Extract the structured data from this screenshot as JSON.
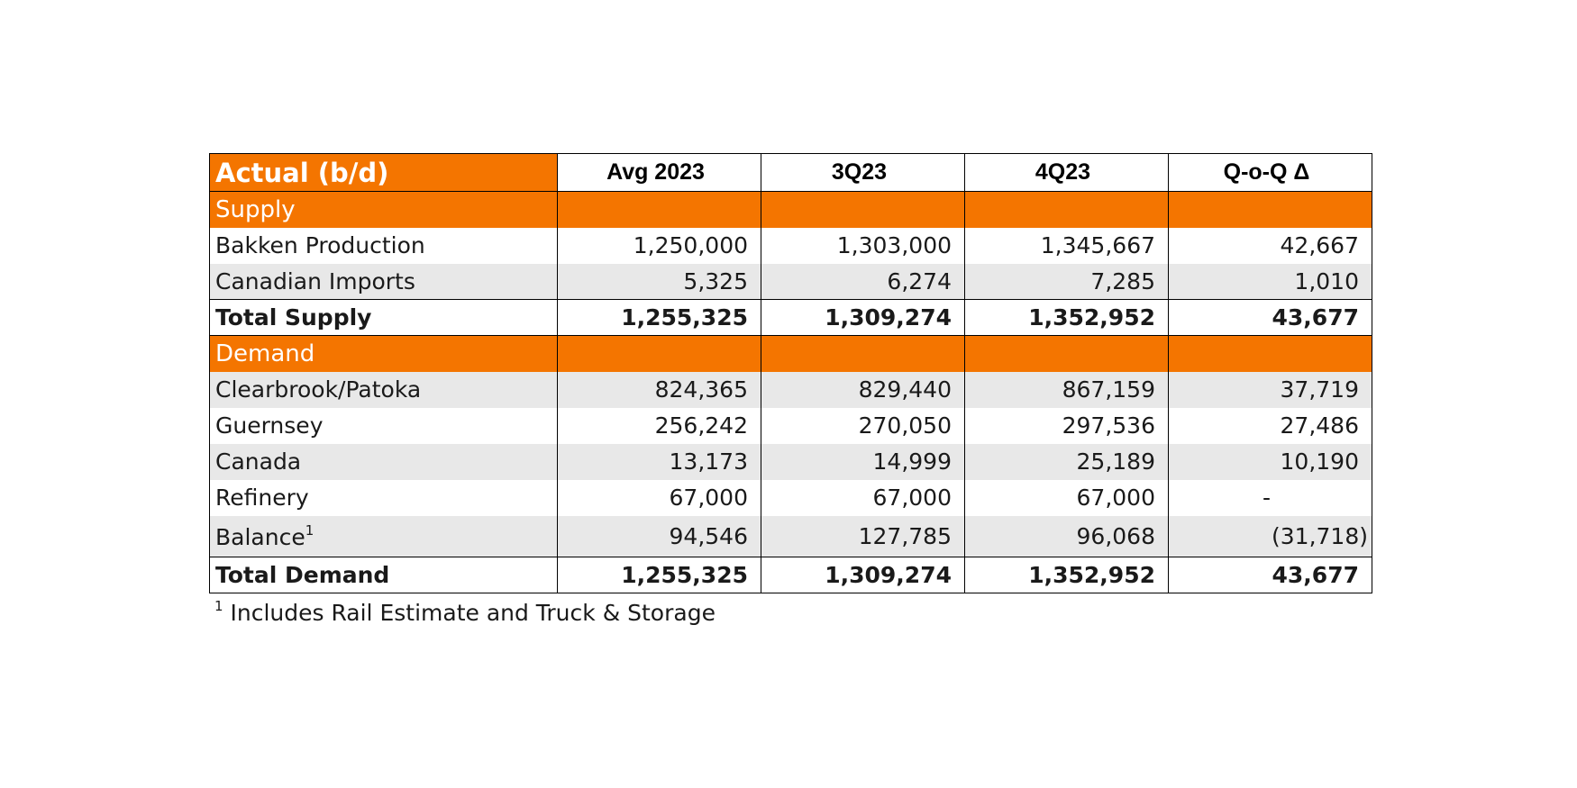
{
  "table": {
    "title": "Actual (b/d)",
    "columns": [
      "Avg 2023",
      "3Q23",
      "4Q23",
      "Q-o-Q Δ"
    ],
    "supply": {
      "label": "Supply",
      "rows": [
        {
          "label": "Bakken Production",
          "values": [
            "1,250,000",
            "1,303,000",
            "1,345,667",
            "42,667"
          ]
        },
        {
          "label": "Canadian Imports",
          "values": [
            "5,325",
            "6,274",
            "7,285",
            "1,010"
          ]
        }
      ],
      "total": {
        "label": "Total Supply",
        "values": [
          "1,255,325",
          "1,309,274",
          "1,352,952",
          "43,677"
        ]
      }
    },
    "demand": {
      "label": "Demand",
      "rows": [
        {
          "label": "Clearbrook/Patoka",
          "values": [
            "824,365",
            "829,440",
            "867,159",
            "37,719"
          ]
        },
        {
          "label": "Guernsey",
          "values": [
            "256,242",
            "270,050",
            "297,536",
            "27,486"
          ]
        },
        {
          "label": "Canada",
          "values": [
            "13,173",
            "14,999",
            "25,189",
            "10,190"
          ]
        },
        {
          "label": "Refinery",
          "values": [
            "67,000",
            "67,000",
            "67,000",
            "-"
          ]
        },
        {
          "label": "Balance",
          "footnote_mark": "1",
          "values": [
            "94,546",
            "127,785",
            "96,068",
            "(31,718)"
          ]
        }
      ],
      "total": {
        "label": "Total Demand",
        "values": [
          "1,255,325",
          "1,309,274",
          "1,352,952",
          "43,677"
        ]
      }
    }
  },
  "footnote": {
    "mark": "1",
    "text": "Includes Rail Estimate and Truck & Storage"
  }
}
